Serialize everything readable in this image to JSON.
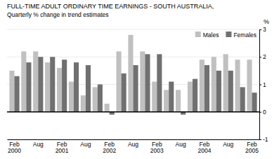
{
  "chart_data": {
    "type": "bar",
    "title": "FULL-TIME ADULT ORDINARY TIME EARNINGS - SOUTH AUSTRALIA,",
    "subtitle": "Quarterly % change in trend estimates",
    "y_label": "%",
    "categories": [
      "Feb\n2000",
      null,
      "Aug",
      null,
      "Feb\n2001",
      null,
      "Aug",
      null,
      "Feb\n2002",
      null,
      "Aug",
      null,
      "Feb\n2003",
      null,
      "Aug",
      null,
      "Feb\n2004",
      null,
      "Aug",
      null,
      "Feb\n2005"
    ],
    "series": [
      {
        "name": "Males",
        "color": "#c0c0c0",
        "values": [
          1.5,
          2.2,
          2.2,
          1.8,
          1.6,
          1.1,
          0.6,
          0.9,
          0.3,
          2.2,
          2.8,
          2.2,
          1.1,
          0.8,
          0.8,
          1.1,
          1.9,
          2.0,
          2.1,
          1.9,
          1.9
        ]
      },
      {
        "name": "Females",
        "color": "#707070",
        "values": [
          1.3,
          1.8,
          2.0,
          2.0,
          1.9,
          1.8,
          1.7,
          1.0,
          -0.1,
          1.4,
          1.7,
          2.1,
          2.1,
          1.1,
          -0.1,
          1.2,
          1.7,
          1.5,
          1.5,
          0.9,
          0.7
        ]
      }
    ],
    "ylim": [
      -1,
      3
    ],
    "yticks": [
      -1,
      0,
      1,
      2,
      3
    ],
    "grid": true,
    "legend": "top-right"
  }
}
